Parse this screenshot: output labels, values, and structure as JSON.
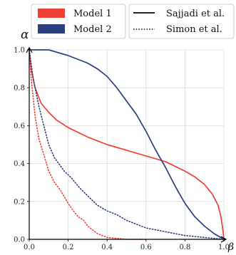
{
  "chart_data": {
    "type": "line",
    "ylabel": "α",
    "xlabel": "β",
    "xlim": [
      0,
      1
    ],
    "ylim": [
      0,
      1
    ],
    "xticks": [
      "0.0",
      "0.2",
      "0.4",
      "0.6",
      "0.8",
      "1.0"
    ],
    "yticks": [
      "0.0",
      "0.2",
      "0.4",
      "0.6",
      "0.8",
      "1.0"
    ],
    "grid": true,
    "legends": {
      "colors": [
        {
          "name": "Model 1",
          "color": "#ee4035"
        },
        {
          "name": "Model 2",
          "color": "#2b3f7e"
        }
      ],
      "styles": [
        {
          "name": "Sajjadi et al.",
          "dash": "solid"
        },
        {
          "name": "Simon et al.",
          "dash": "dotted"
        }
      ]
    },
    "series": [
      {
        "model": "Model 1",
        "method": "Sajjadi et al.",
        "color": "#ee4035",
        "dash": "solid",
        "points": [
          [
            0,
            1.0
          ],
          [
            0.01,
            0.9
          ],
          [
            0.03,
            0.8
          ],
          [
            0.06,
            0.72
          ],
          [
            0.1,
            0.67
          ],
          [
            0.14,
            0.63
          ],
          [
            0.2,
            0.59
          ],
          [
            0.3,
            0.54
          ],
          [
            0.4,
            0.5
          ],
          [
            0.5,
            0.47
          ],
          [
            0.6,
            0.44
          ],
          [
            0.7,
            0.41
          ],
          [
            0.8,
            0.36
          ],
          [
            0.85,
            0.33
          ],
          [
            0.9,
            0.29
          ],
          [
            0.94,
            0.24
          ],
          [
            0.97,
            0.18
          ],
          [
            0.985,
            0.12
          ],
          [
            0.995,
            0.05
          ],
          [
            1.0,
            0.0
          ]
        ]
      },
      {
        "model": "Model 2",
        "method": "Sajjadi et al.",
        "color": "#2b3f7e",
        "dash": "solid",
        "points": [
          [
            0,
            1.0
          ],
          [
            0.1,
            1.0
          ],
          [
            0.2,
            0.97
          ],
          [
            0.3,
            0.93
          ],
          [
            0.35,
            0.9
          ],
          [
            0.4,
            0.86
          ],
          [
            0.45,
            0.8
          ],
          [
            0.5,
            0.73
          ],
          [
            0.55,
            0.66
          ],
          [
            0.6,
            0.57
          ],
          [
            0.65,
            0.47
          ],
          [
            0.7,
            0.38
          ],
          [
            0.75,
            0.28
          ],
          [
            0.8,
            0.19
          ],
          [
            0.85,
            0.12
          ],
          [
            0.9,
            0.07
          ],
          [
            0.95,
            0.03
          ],
          [
            1.0,
            0.0
          ]
        ]
      },
      {
        "model": "Model 1",
        "method": "Simon et al.",
        "color": "#ee4035",
        "dash": "dotted",
        "points": [
          [
            0,
            1.0
          ],
          [
            0.01,
            0.85
          ],
          [
            0.03,
            0.65
          ],
          [
            0.05,
            0.53
          ],
          [
            0.08,
            0.43
          ],
          [
            0.1,
            0.36
          ],
          [
            0.13,
            0.3
          ],
          [
            0.16,
            0.26
          ],
          [
            0.2,
            0.19
          ],
          [
            0.22,
            0.16
          ],
          [
            0.25,
            0.12
          ],
          [
            0.28,
            0.1
          ],
          [
            0.3,
            0.07
          ],
          [
            0.35,
            0.03
          ],
          [
            0.4,
            0.01
          ],
          [
            0.5,
            0.0
          ],
          [
            0.6,
            0.0
          ]
        ]
      },
      {
        "model": "Model 2",
        "method": "Simon et al.",
        "color": "#2b3f7e",
        "dash": "dotted",
        "points": [
          [
            0,
            1.0
          ],
          [
            0.02,
            0.85
          ],
          [
            0.05,
            0.7
          ],
          [
            0.08,
            0.58
          ],
          [
            0.1,
            0.5
          ],
          [
            0.13,
            0.43
          ],
          [
            0.18,
            0.36
          ],
          [
            0.22,
            0.32
          ],
          [
            0.26,
            0.27
          ],
          [
            0.3,
            0.23
          ],
          [
            0.35,
            0.18
          ],
          [
            0.4,
            0.15
          ],
          [
            0.45,
            0.13
          ],
          [
            0.5,
            0.1
          ],
          [
            0.55,
            0.08
          ],
          [
            0.6,
            0.06
          ],
          [
            0.7,
            0.04
          ],
          [
            0.8,
            0.02
          ],
          [
            0.9,
            0.01
          ],
          [
            1.0,
            0.0
          ]
        ]
      }
    ]
  }
}
